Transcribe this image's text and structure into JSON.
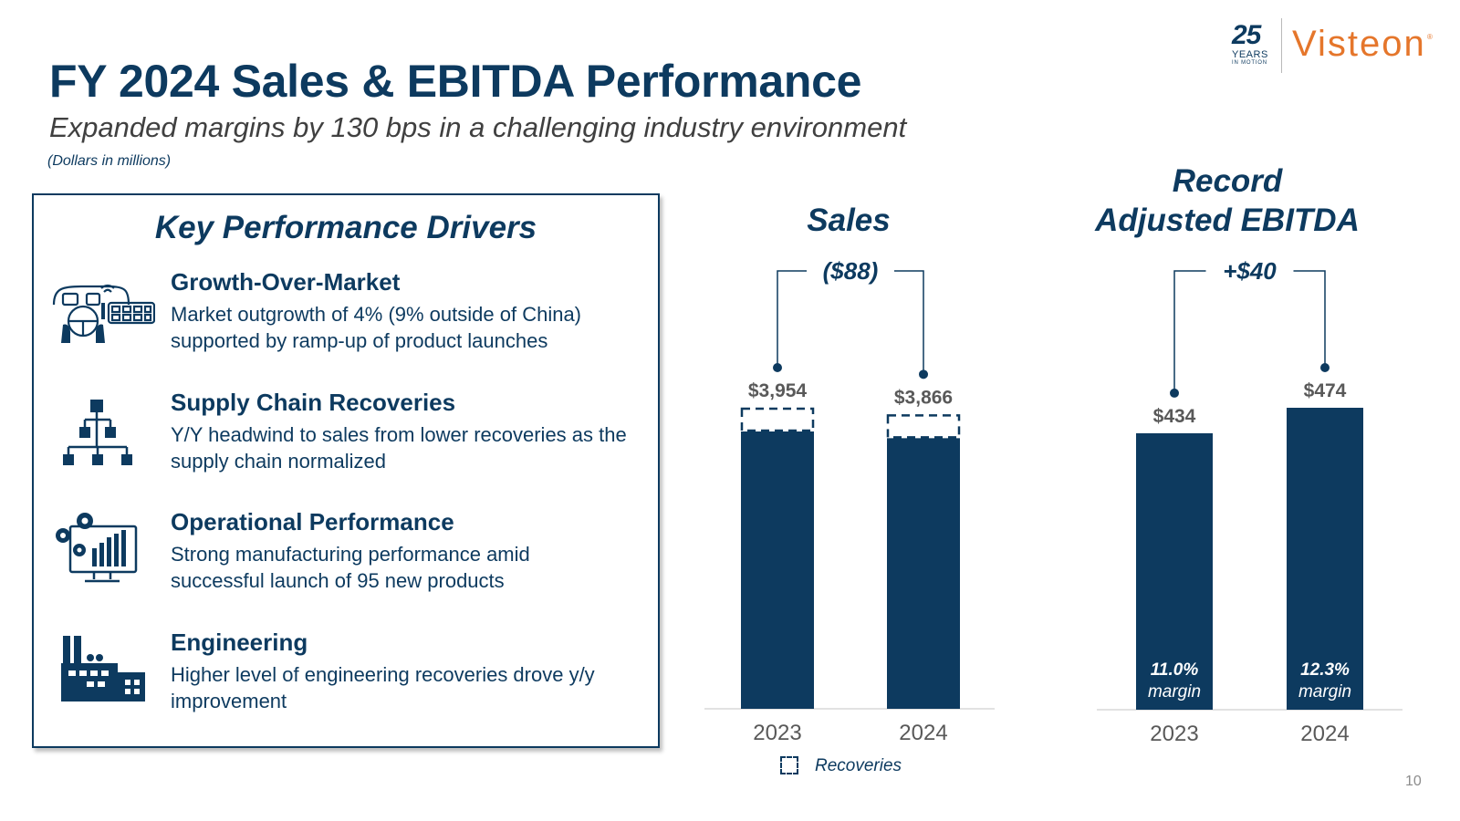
{
  "header": {
    "title": "FY 2024 Sales & EBITDA Performance",
    "subtitle": "Expanded margins by 130 bps in a challenging industry environment",
    "units": "(Dollars in millions)"
  },
  "logo": {
    "years_number": "25",
    "years_label": "YEARS",
    "motion_label": "IN MOTION",
    "brand": "Visteon",
    "trademark": "®",
    "brand_color": "#e5762b"
  },
  "drivers": {
    "title": "Key Performance Drivers",
    "items": [
      {
        "icon": "car-dashboard-icon",
        "title": "Growth-Over-Market",
        "description": "Market outgrowth of 4% (9% outside of China) supported by ramp-up of product launches"
      },
      {
        "icon": "org-chart-icon",
        "title": "Supply Chain Recoveries",
        "description": "Y/Y headwind to sales from lower recoveries as the supply chain normalized"
      },
      {
        "icon": "gear-monitor-icon",
        "title": "Operational Performance",
        "description": "Strong manufacturing performance amid successful launch of 95 new products"
      },
      {
        "icon": "factory-icon",
        "title": "Engineering",
        "description": "Higher level of engineering recoveries drove y/y improvement"
      }
    ]
  },
  "chart_data": [
    {
      "type": "bar",
      "title": "Sales",
      "categories": [
        "2023",
        "2024"
      ],
      "values": [
        3954,
        3866
      ],
      "value_labels": [
        "$3,954",
        "$3,866"
      ],
      "recoveries_portion_labels": [
        "Recoveries",
        "Recoveries"
      ],
      "change_label": "($88)",
      "legend": "Recoveries",
      "ylim": [
        0,
        4500
      ],
      "colors": {
        "bar": "#0d3a5f"
      }
    },
    {
      "type": "bar",
      "title_line1": "Record",
      "title_line2": "Adjusted EBITDA",
      "categories": [
        "2023",
        "2024"
      ],
      "values": [
        434,
        474
      ],
      "value_labels": [
        "$434",
        "$474"
      ],
      "margins": [
        "11.0%",
        "12.3%"
      ],
      "margin_label": "margin",
      "change_label": "+$40",
      "ylim": [
        0,
        650
      ],
      "colors": {
        "bar": "#0d3a5f"
      }
    }
  ],
  "page_number": "10"
}
